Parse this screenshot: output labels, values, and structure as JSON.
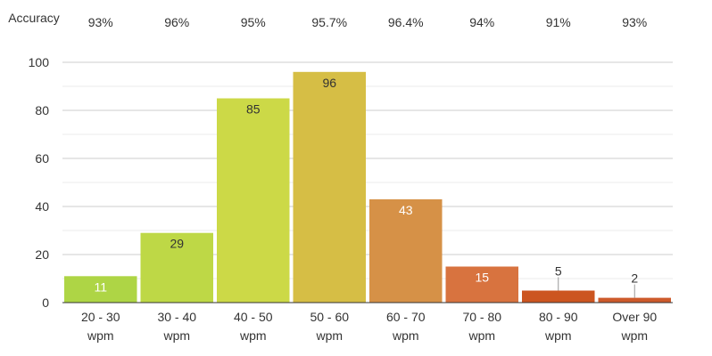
{
  "chart_data": {
    "type": "bar",
    "accuracy_label": "Accuracy",
    "accuracy": [
      "93%",
      "96%",
      "95%",
      "95.7%",
      "96.4%",
      "94%",
      "91%",
      "93%"
    ],
    "categories": [
      [
        "20 - 30",
        "wpm"
      ],
      [
        "30 - 40",
        "wpm"
      ],
      [
        "40 - 50",
        "wpm"
      ],
      [
        "50 - 60",
        "wpm"
      ],
      [
        "60 - 70",
        "wpm"
      ],
      [
        "70 - 80",
        "wpm"
      ],
      [
        "80 - 90",
        "wpm"
      ],
      [
        "Over 90",
        "wpm"
      ]
    ],
    "values": [
      11,
      29,
      85,
      96,
      43,
      15,
      5,
      2
    ],
    "colors": [
      "#aed545",
      "#bed846",
      "#ccd947",
      "#d6be45",
      "#d69147",
      "#d8733f",
      "#cc5520",
      "#cd5a2b"
    ],
    "label_colors": [
      "#ffffff",
      "#333333",
      "#333333",
      "#333333",
      "#ffffff",
      "#ffffff",
      "#333333",
      "#333333"
    ],
    "yticks": [
      0,
      20,
      40,
      60,
      80,
      100
    ],
    "ylim": [
      0,
      100
    ],
    "grid": true
  }
}
